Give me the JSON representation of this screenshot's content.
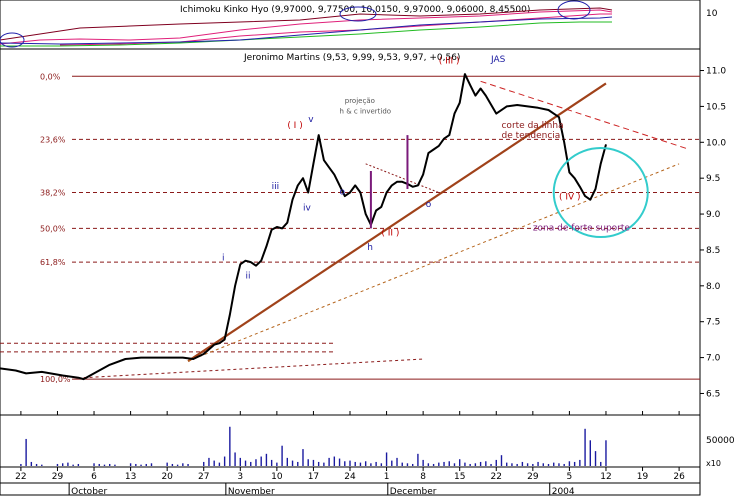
{
  "colors": {
    "background": "#ffffff",
    "price_line": "#000000",
    "fib_line": "#8b1a1a",
    "dotted_line": "#8b1a1a",
    "trendline": "#a0421a",
    "resistance": "#cc2222",
    "support_dotted": "#b5651d",
    "ellipse": "#33cccc",
    "volume": "#1a1aa0",
    "wave_red": "#c00000",
    "wave_blue": "#1a1aa0",
    "label_gray": "#555555",
    "ichimoku_pink": "#e0207a",
    "ichimoku_dark": "#800020",
    "ichimoku_green": "#22bb22",
    "ichimoku_blue": "#2222aa",
    "text_dark": "#000000"
  },
  "ichimoku_panel": {
    "title": "Ichimoku Kinko Hyo (9,97000, 9,77500, 10,0150, 9,97000, 9,06000, 8,45500)",
    "axis_label": "10"
  },
  "chart_data": {
    "type": "line",
    "title": "Jeronimo Martins (9,53, 9,99, 9,53, 9,97, +0,56)",
    "x_ticks": [
      {
        "label": "22",
        "day": 0
      },
      {
        "label": "29",
        "day": 7
      },
      {
        "label": "6",
        "day": 14
      },
      {
        "label": "13",
        "day": 21
      },
      {
        "label": "20",
        "day": 28
      },
      {
        "label": "27",
        "day": 35
      },
      {
        "label": "3",
        "day": 42
      },
      {
        "label": "10",
        "day": 49
      },
      {
        "label": "17",
        "day": 56
      },
      {
        "label": "24",
        "day": 63
      },
      {
        "label": "1",
        "day": 70
      },
      {
        "label": "8",
        "day": 77
      },
      {
        "label": "15",
        "day": 84
      },
      {
        "label": "22",
        "day": 91
      },
      {
        "label": "29",
        "day": 98
      },
      {
        "label": "5",
        "day": 105
      },
      {
        "label": "12",
        "day": 112
      },
      {
        "label": "19",
        "day": 119
      },
      {
        "label": "26",
        "day": 126
      }
    ],
    "months": [
      {
        "label": "October",
        "day": 10
      },
      {
        "label": "November",
        "day": 40
      },
      {
        "label": "December",
        "day": 71
      },
      {
        "label": "2004",
        "day": 102
      }
    ],
    "xlim": [
      -4,
      130
    ],
    "ylim": [
      6.2,
      11.3
    ],
    "y_ticks": [
      {
        "value": 11.0,
        "label": "11.0"
      },
      {
        "value": 10.5,
        "label": "10.5"
      },
      {
        "value": 10.0,
        "label": "10.0"
      },
      {
        "value": 9.5,
        "label": "9.5"
      },
      {
        "value": 9.0,
        "label": "9.0"
      },
      {
        "value": 8.5,
        "label": "8.5"
      },
      {
        "value": 8.0,
        "label": "8.0"
      },
      {
        "value": 7.5,
        "label": "7.5"
      },
      {
        "value": 7.0,
        "label": "7.0"
      },
      {
        "value": 6.5,
        "label": "6.5"
      }
    ],
    "series": [
      {
        "x": [
          -4,
          -1,
          1,
          4,
          8,
          11,
          12,
          14,
          17,
          20,
          23,
          26,
          29,
          31,
          33,
          35,
          37,
          38,
          39,
          40,
          41,
          42,
          43,
          44,
          45,
          46,
          47,
          48,
          49,
          50,
          51,
          52,
          53,
          54,
          55,
          56,
          57,
          58,
          59,
          60,
          61,
          62,
          63,
          64,
          65,
          66,
          67,
          68,
          69,
          70,
          71,
          72,
          73,
          74,
          75,
          76,
          77,
          78,
          79,
          80,
          81,
          82,
          83,
          84,
          85,
          86,
          87,
          88,
          89,
          91,
          93,
          95,
          97,
          99,
          101,
          102,
          103,
          104,
          105,
          106,
          107,
          108,
          109,
          110,
          111,
          112
        ],
        "y": [
          6.85,
          6.82,
          6.78,
          6.8,
          6.75,
          6.72,
          6.7,
          6.78,
          6.9,
          6.98,
          7.0,
          7.0,
          7.0,
          7.0,
          6.98,
          7.05,
          7.18,
          7.2,
          7.25,
          7.6,
          8.0,
          8.3,
          8.35,
          8.33,
          8.28,
          8.35,
          8.55,
          8.78,
          8.82,
          8.8,
          8.88,
          9.2,
          9.4,
          9.5,
          9.3,
          9.7,
          10.1,
          9.75,
          9.65,
          9.55,
          9.4,
          9.25,
          9.3,
          9.4,
          9.3,
          9.0,
          8.85,
          9.05,
          9.1,
          9.3,
          9.4,
          9.45,
          9.45,
          9.42,
          9.38,
          9.4,
          9.55,
          9.85,
          9.9,
          9.95,
          10.05,
          10.1,
          10.4,
          10.55,
          10.95,
          10.8,
          10.65,
          10.75,
          10.65,
          10.4,
          10.5,
          10.52,
          10.5,
          10.48,
          10.45,
          10.4,
          10.35,
          10.0,
          9.58,
          9.5,
          9.38,
          9.25,
          9.2,
          9.35,
          9.7,
          9.97
        ]
      }
    ],
    "fib_levels": [
      {
        "label": "0,0%",
        "value": 10.92
      },
      {
        "label": "23,6%",
        "value": 10.04
      },
      {
        "label": "38,2%",
        "value": 9.3
      },
      {
        "label": "50,0%",
        "value": 8.8
      },
      {
        "label": "61,8%",
        "value": 8.33
      },
      {
        "label": "100,0%",
        "value": 6.7
      }
    ],
    "dotted_levels": [
      {
        "value": 7.2,
        "x_end": 60
      },
      {
        "value": 7.08,
        "x_end": 60
      }
    ],
    "trendlines": [
      {
        "kind": "trend",
        "x": [
          32,
          112
        ],
        "y": [
          6.95,
          10.82
        ]
      },
      {
        "kind": "resistance",
        "x": [
          88,
          128
        ],
        "y": [
          10.85,
          9.9
        ]
      },
      {
        "kind": "support",
        "x": [
          32,
          126
        ],
        "y": [
          6.95,
          9.7
        ]
      },
      {
        "kind": "bottom",
        "x": [
          12,
          77
        ],
        "y": [
          6.72,
          6.98
        ]
      },
      {
        "kind": "projection",
        "x": [
          66,
          80
        ],
        "y": [
          9.7,
          9.3
        ]
      }
    ],
    "vertical_markers": [
      {
        "x": 67,
        "y0": 8.8,
        "y1": 9.6
      },
      {
        "x": 74,
        "y0": 9.35,
        "y1": 10.1
      }
    ],
    "ellipse": {
      "cx": 111,
      "cy": 9.3,
      "rx": 9,
      "ry": 0.62
    },
    "annotations": [
      {
        "text": "0,0%",
        "x": -4,
        "y": 10.92,
        "kind": "fib"
      },
      {
        "text": "( III )",
        "x": 80,
        "y": 11.1,
        "kind": "wave_red"
      },
      {
        "text": "JAS",
        "x": 90,
        "y": 11.12,
        "kind": "wave_blue"
      },
      {
        "text": "( I )",
        "x": 51,
        "y": 10.2,
        "kind": "wave_red"
      },
      {
        "text": "v",
        "x": 55,
        "y": 10.28,
        "kind": "wave_blue"
      },
      {
        "text": "projeção",
        "x": 62,
        "y": 10.55,
        "kind": "note"
      },
      {
        "text": "h & c invertido",
        "x": 61,
        "y": 10.4,
        "kind": "note"
      },
      {
        "text": "iii",
        "x": 48,
        "y": 9.35,
        "kind": "wave_blue"
      },
      {
        "text": "iv",
        "x": 54,
        "y": 9.05,
        "kind": "wave_blue"
      },
      {
        "text": "ii",
        "x": 43,
        "y": 8.1,
        "kind": "wave_blue"
      },
      {
        "text": "i",
        "x": 38.5,
        "y": 8.35,
        "kind": "wave_blue"
      },
      {
        "text": "o",
        "x": 61,
        "y": 9.27,
        "kind": "wave_blue"
      },
      {
        "text": "h",
        "x": 66.3,
        "y": 8.5,
        "kind": "wave_blue"
      },
      {
        "text": "o",
        "x": 77.5,
        "y": 9.1,
        "kind": "wave_blue"
      },
      {
        "text": "( II )",
        "x": 69,
        "y": 8.7,
        "kind": "wave_red"
      },
      {
        "text": "corte da linha",
        "x": 92,
        "y": 10.2,
        "kind": "note_red"
      },
      {
        "text": "de tendencia",
        "x": 92,
        "y": 10.06,
        "kind": "note_red"
      },
      {
        "text": "( IV )",
        "x": 103,
        "y": 9.2,
        "kind": "wave_red"
      },
      {
        "text": "zona de forte suporte",
        "x": 98,
        "y": 8.77,
        "kind": "note_purple"
      }
    ]
  },
  "volume_panel": {
    "axis_label": "50000",
    "scale_label": "x10",
    "days": [
      0,
      1,
      2,
      3,
      4,
      7,
      8,
      9,
      10,
      11,
      14,
      15,
      16,
      17,
      18,
      21,
      22,
      23,
      24,
      25,
      28,
      29,
      30,
      31,
      32,
      35,
      36,
      37,
      38,
      39,
      40,
      41,
      42,
      43,
      44,
      45,
      46,
      47,
      48,
      49,
      50,
      51,
      52,
      53,
      54,
      55,
      56,
      57,
      58,
      59,
      60,
      61,
      62,
      63,
      64,
      65,
      66,
      67,
      68,
      69,
      70,
      71,
      72,
      73,
      74,
      75,
      76,
      77,
      78,
      79,
      80,
      81,
      82,
      83,
      84,
      85,
      86,
      87,
      88,
      89,
      90,
      91,
      92,
      93,
      94,
      95,
      96,
      97,
      98,
      99,
      100,
      101,
      102,
      103,
      104,
      105,
      106,
      107,
      108,
      109,
      110,
      111,
      112
    ],
    "values": [
      3000,
      40000,
      6000,
      3000,
      2000,
      3000,
      4000,
      5000,
      2000,
      3000,
      4000,
      3000,
      2000,
      3000,
      2000,
      4000,
      3000,
      2000,
      3000,
      4000,
      5000,
      3000,
      2000,
      4000,
      3000,
      6000,
      12000,
      8000,
      5000,
      14000,
      58000,
      20000,
      12000,
      8000,
      6000,
      10000,
      14000,
      18000,
      9000,
      5000,
      30000,
      12000,
      8000,
      6000,
      25000,
      10000,
      9000,
      6000,
      5000,
      12000,
      14000,
      11000,
      7000,
      8000,
      6000,
      5000,
      7000,
      4000,
      6000,
      4000,
      20000,
      8000,
      12000,
      5000,
      4000,
      3000,
      18000,
      9000,
      4000,
      3000,
      5000,
      6000,
      7000,
      4000,
      10000,
      5000,
      3000,
      4000,
      6000,
      7000,
      3000,
      9000,
      16000,
      5000,
      4000,
      3000,
      6000,
      4000,
      3000,
      6000,
      4000,
      3000,
      5000,
      4000,
      3000,
      7000,
      6000,
      9000,
      55000,
      38000,
      22000,
      6000,
      38000
    ],
    "ymax": 68000
  }
}
